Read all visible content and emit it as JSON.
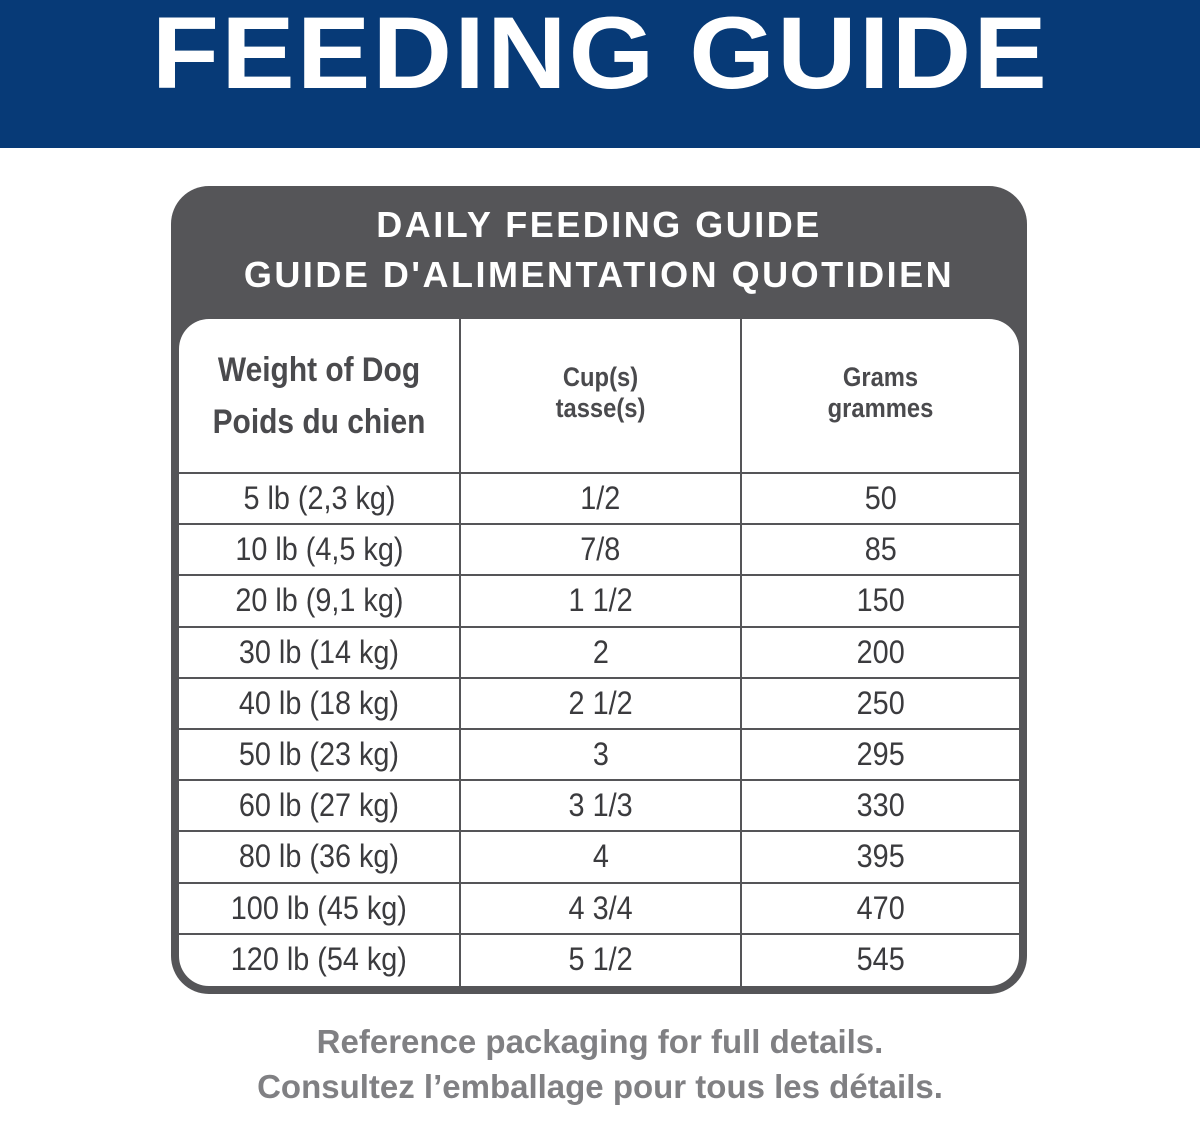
{
  "banner": {
    "title": "FEEDING GUIDE"
  },
  "card": {
    "heading_en": "DAILY FEEDING GUIDE",
    "heading_fr": "GUIDE D'ALIMENTATION QUOTIDIEN"
  },
  "table": {
    "headers": [
      {
        "line1": "Weight of Dog",
        "line2": "Poids du chien"
      },
      {
        "line1": "Cup(s)",
        "line2": "tasse(s)"
      },
      {
        "line1": "Grams",
        "line2": "grammes"
      }
    ],
    "rows": [
      {
        "weight": "5 lb (2,3 kg)",
        "cups": "1/2",
        "grams": "50"
      },
      {
        "weight": "10 lb (4,5 kg)",
        "cups": "7/8",
        "grams": "85"
      },
      {
        "weight": "20 lb (9,1 kg)",
        "cups": "1 1/2",
        "grams": "150"
      },
      {
        "weight": "30 lb (14 kg)",
        "cups": "2",
        "grams": "200"
      },
      {
        "weight": "40 lb (18 kg)",
        "cups": "2 1/2",
        "grams": "250"
      },
      {
        "weight": "50 lb (23 kg)",
        "cups": "3",
        "grams": "295"
      },
      {
        "weight": "60 lb (27 kg)",
        "cups": "3 1/3",
        "grams": "330"
      },
      {
        "weight": "80 lb (36 kg)",
        "cups": "4",
        "grams": "395"
      },
      {
        "weight": "100 lb (45 kg)",
        "cups": "4 3/4",
        "grams": "470"
      },
      {
        "weight": "120 lb (54 kg)",
        "cups": "5 1/2",
        "grams": "545"
      }
    ]
  },
  "footer": {
    "line_en": "Reference packaging for full details.",
    "line_fr": "Consultez l’emballage pour tous les détails."
  },
  "colors": {
    "banner": "#073a77",
    "card": "#555558",
    "text_dark": "#3b3b3e",
    "footer_text": "#808083"
  }
}
